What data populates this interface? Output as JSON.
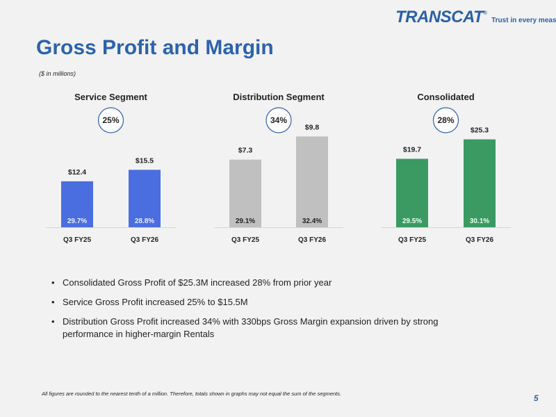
{
  "logo": {
    "text": "TRANSCAT",
    "registered": "®",
    "tagline": "Trust in every measure"
  },
  "title": "Gross Profit and Margin",
  "subtitle": "($ in millions)",
  "colors": {
    "service": "#4a6ee0",
    "distribution": "#c0c0c0",
    "consolidated": "#3a9a62",
    "title": "#2b63ad"
  },
  "chart_data": [
    {
      "type": "bar",
      "title": "Service Segment",
      "categories": [
        "Q3 FY25",
        "Q3 FY26"
      ],
      "values": [
        12.4,
        15.5
      ],
      "value_labels": [
        "$12.4",
        "$15.5"
      ],
      "margin_labels": [
        "29.7%",
        "28.8%"
      ],
      "growth": "25%",
      "color": "#4a6ee0",
      "margin_label_color": "#e8eeff",
      "ylim": [
        0,
        30
      ]
    },
    {
      "type": "bar",
      "title": "Distribution Segment",
      "categories": [
        "Q3 FY25",
        "Q3 FY26"
      ],
      "values": [
        7.3,
        9.8
      ],
      "value_labels": [
        "$7.3",
        "$9.8"
      ],
      "margin_labels": [
        "29.1%",
        "32.4%"
      ],
      "growth": "34%",
      "color": "#c0c0c0",
      "margin_label_color": "#222222",
      "ylim": [
        0,
        12
      ]
    },
    {
      "type": "bar",
      "title": "Consolidated",
      "categories": [
        "Q3 FY25",
        "Q3 FY26"
      ],
      "values": [
        19.7,
        25.3
      ],
      "value_labels": [
        "$19.7",
        "$25.3"
      ],
      "margin_labels": [
        "29.5%",
        "30.1%"
      ],
      "growth": "28%",
      "color": "#3a9a62",
      "margin_label_color": "#e8fff0",
      "ylim": [
        0,
        32
      ]
    }
  ],
  "bullets": [
    "Consolidated Gross Profit of $25.3M increased 28% from prior year",
    "Service Gross Profit increased 25% to $15.5M",
    "Distribution Gross Profit increased 34% with 330bps Gross Margin expansion driven by strong performance in higher-margin Rentals"
  ],
  "footnote": "All figures are rounded to the nearest tenth of a million. Therefore, totals shown in graphs may not equal the sum of the segments.",
  "page_number": "5"
}
